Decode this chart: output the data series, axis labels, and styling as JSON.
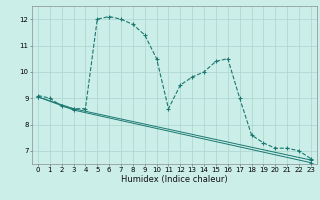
{
  "xlabel": "Humidex (Indice chaleur)",
  "background_color": "#cceee8",
  "line_color": "#1a7870",
  "grid_color": "#aad4ce",
  "xlim": [
    -0.5,
    23.5
  ],
  "ylim": [
    6.5,
    12.5
  ],
  "xticks": [
    0,
    1,
    2,
    3,
    4,
    5,
    6,
    7,
    8,
    9,
    10,
    11,
    12,
    13,
    14,
    15,
    16,
    17,
    18,
    19,
    20,
    21,
    22,
    23
  ],
  "yticks": [
    7,
    8,
    9,
    10,
    11,
    12
  ],
  "line1_x": [
    0,
    1,
    2,
    3,
    4,
    5,
    6,
    7,
    8,
    9,
    10,
    11,
    12,
    13,
    14,
    15,
    16,
    17,
    18,
    19,
    20,
    21,
    22,
    23
  ],
  "line1_y": [
    9.1,
    9.0,
    8.7,
    8.6,
    8.6,
    12.0,
    12.1,
    12.0,
    11.8,
    11.4,
    10.5,
    8.6,
    9.5,
    9.8,
    10.0,
    10.4,
    10.5,
    9.0,
    7.6,
    7.3,
    7.1,
    7.1,
    7.0,
    6.7
  ],
  "line2_x": [
    0,
    3,
    23
  ],
  "line2_y": [
    9.05,
    8.6,
    6.65
  ],
  "line3_x": [
    0,
    3,
    23
  ],
  "line3_y": [
    9.05,
    8.55,
    6.55
  ]
}
